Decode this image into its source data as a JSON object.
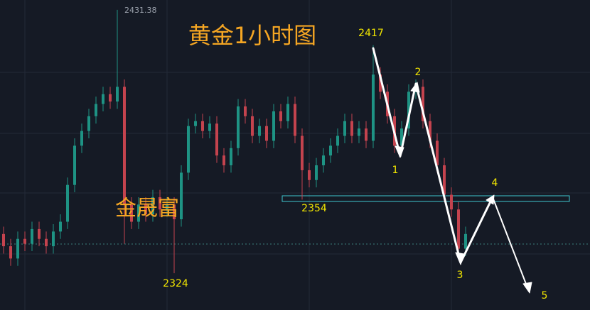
{
  "chart_data": {
    "type": "candlestick",
    "title": "黄金1小时图",
    "watermark": "金晟富",
    "ylim": [
      2309,
      2435.4
    ],
    "up_color": "#1e9384",
    "down_color": "#c4434e",
    "open": [
      2340,
      2335,
      2330,
      2338,
      2336,
      2342,
      2338,
      2335,
      2341,
      2345,
      2360,
      2376,
      2382,
      2388,
      2393,
      2397,
      2394,
      2400,
      2352,
      2345,
      2352,
      2348,
      2355,
      2350,
      2352,
      2346,
      2365,
      2384,
      2386,
      2382,
      2385,
      2372,
      2368,
      2375,
      2392,
      2388,
      2380,
      2384,
      2378,
      2390,
      2386,
      2393,
      2380,
      2366,
      2362,
      2368,
      2372,
      2376,
      2380,
      2386,
      2380,
      2383,
      2378,
      2405,
      2398,
      2388,
      2376,
      2383,
      2398,
      2400,
      2386,
      2378,
      2368,
      2356,
      2350,
      2334
    ],
    "high": [
      2343,
      2338,
      2341,
      2341,
      2345,
      2345,
      2341,
      2344,
      2348,
      2363,
      2379,
      2385,
      2391,
      2396,
      2400,
      2400,
      2431.38,
      2403,
      2355,
      2355,
      2355,
      2358,
      2358,
      2355,
      2355,
      2368,
      2387,
      2389,
      2389,
      2388,
      2388,
      2375,
      2378,
      2395,
      2395,
      2391,
      2387,
      2387,
      2393,
      2393,
      2396,
      2396,
      2383,
      2369,
      2371,
      2375,
      2379,
      2383,
      2389,
      2389,
      2386,
      2386,
      2417,
      2408,
      2401,
      2391,
      2386,
      2401,
      2403,
      2403,
      2389,
      2381,
      2371,
      2359,
      2353,
      2343
    ],
    "low": [
      2332,
      2327,
      2327,
      2333,
      2333,
      2335,
      2332,
      2332,
      2338,
      2342,
      2357,
      2373,
      2379,
      2385,
      2390,
      2391,
      2391,
      2336,
      2342,
      2342,
      2345,
      2345,
      2347,
      2347,
      2324,
      2343,
      2362,
      2381,
      2379,
      2379,
      2369,
      2365,
      2365,
      2372,
      2385,
      2377,
      2377,
      2375,
      2375,
      2383,
      2383,
      2377,
      2354,
      2359,
      2359,
      2365,
      2369,
      2373,
      2377,
      2377,
      2377,
      2375,
      2375,
      2395,
      2385,
      2373,
      2373,
      2380,
      2395,
      2383,
      2375,
      2365,
      2353,
      2347,
      2331,
      2331
    ],
    "close": [
      2335,
      2330,
      2338,
      2336,
      2342,
      2338,
      2335,
      2341,
      2345,
      2360,
      2376,
      2382,
      2388,
      2393,
      2397,
      2394,
      2400,
      2352,
      2345,
      2352,
      2348,
      2355,
      2350,
      2352,
      2346,
      2365,
      2384,
      2386,
      2382,
      2385,
      2372,
      2368,
      2375,
      2392,
      2388,
      2380,
      2384,
      2378,
      2390,
      2386,
      2393,
      2380,
      2366,
      2362,
      2368,
      2372,
      2376,
      2380,
      2386,
      2380,
      2383,
      2378,
      2405,
      2398,
      2388,
      2376,
      2383,
      2398,
      2400,
      2386,
      2378,
      2368,
      2356,
      2350,
      2334,
      2340
    ],
    "price_labels": [
      2431.38,
      2417,
      2354,
      2324
    ],
    "wave_labels": [
      1,
      2,
      3,
      4,
      5
    ]
  }
}
